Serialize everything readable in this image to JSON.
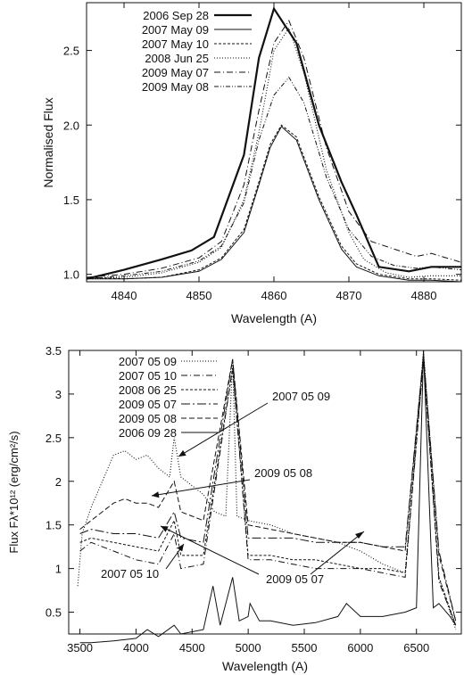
{
  "chart_data": [
    {
      "type": "line",
      "xlabel": "Wavelength (A)",
      "ylabel": "Normalised Flux",
      "xlim": [
        4835,
        4885
      ],
      "ylim": [
        0.95,
        2.82
      ],
      "xticks": [
        4840,
        4850,
        4860,
        4870,
        4880
      ],
      "yticks": [
        1.0,
        1.5,
        2.0,
        2.5
      ],
      "ytick_labels": [
        "1.0",
        "1.5",
        "2.0",
        "2.5"
      ],
      "grid": false,
      "legend_position": "top-left",
      "series": [
        {
          "name": "2006 Sep 28",
          "style": "thick-solid",
          "x": [
            4835,
            4840,
            4845,
            4849,
            4852,
            4856,
            4858,
            4860,
            4863,
            4866,
            4869,
            4871,
            4874,
            4878,
            4881,
            4885
          ],
          "y": [
            0.97,
            1.03,
            1.1,
            1.16,
            1.25,
            1.8,
            2.45,
            2.78,
            2.55,
            2.0,
            1.62,
            1.4,
            1.05,
            1.02,
            1.05,
            1.05
          ]
        },
        {
          "name": "2007 May 09",
          "style": "solid",
          "x": [
            4835,
            4840,
            4845,
            4850,
            4853,
            4856,
            4858,
            4859.5,
            4861,
            4863,
            4866,
            4869,
            4871,
            4874,
            4878,
            4881,
            4885
          ],
          "y": [
            0.97,
            0.97,
            0.98,
            1.02,
            1.1,
            1.28,
            1.6,
            1.85,
            1.99,
            1.9,
            1.5,
            1.17,
            1.05,
            0.99,
            0.96,
            0.96,
            0.95
          ]
        },
        {
          "name": "2007 May 10",
          "style": "dashed",
          "x": [
            4835,
            4840,
            4845,
            4850,
            4853,
            4856,
            4858,
            4859.5,
            4861,
            4863,
            4866,
            4869,
            4871,
            4874,
            4878,
            4881,
            4885
          ],
          "y": [
            0.98,
            0.97,
            0.98,
            1.03,
            1.11,
            1.3,
            1.62,
            1.87,
            2.0,
            1.92,
            1.52,
            1.19,
            1.07,
            1.0,
            0.97,
            0.97,
            0.96
          ]
        },
        {
          "name": "2008 Jun 25",
          "style": "dotted",
          "x": [
            4835,
            4840,
            4845,
            4850,
            4853,
            4856,
            4858,
            4860,
            4862,
            4864,
            4867,
            4870,
            4872,
            4875,
            4878,
            4881,
            4885
          ],
          "y": [
            0.97,
            0.98,
            1.01,
            1.08,
            1.18,
            1.5,
            1.95,
            2.5,
            2.65,
            2.35,
            1.7,
            1.28,
            1.1,
            1.01,
            0.98,
            0.99,
            0.99
          ]
        },
        {
          "name": "2009 May 07",
          "style": "dash-dot",
          "x": [
            4835,
            4840,
            4845,
            4850,
            4853,
            4856,
            4858,
            4860,
            4862,
            4864,
            4867,
            4870,
            4873,
            4876,
            4879,
            4881,
            4885
          ],
          "y": [
            0.98,
            1.0,
            1.04,
            1.11,
            1.22,
            1.6,
            2.1,
            2.55,
            2.7,
            2.45,
            1.85,
            1.42,
            1.22,
            1.17,
            1.12,
            1.14,
            1.08
          ]
        },
        {
          "name": "2009 May 08",
          "style": "dash-dot-dot",
          "x": [
            4835,
            4840,
            4845,
            4850,
            4853,
            4856,
            4858,
            4860,
            4862,
            4864,
            4867,
            4870,
            4873,
            4876,
            4879,
            4881,
            4885
          ],
          "y": [
            0.97,
            0.99,
            1.02,
            1.09,
            1.19,
            1.48,
            1.9,
            2.2,
            2.32,
            2.15,
            1.65,
            1.3,
            1.12,
            1.06,
            1.04,
            1.05,
            1.03
          ]
        }
      ]
    },
    {
      "type": "line",
      "xlabel": "Wavelength (A)",
      "ylabel": "Flux Fλ*10¹² (erg/cm²/s)",
      "xlim": [
        3400,
        6900
      ],
      "ylim": [
        0.25,
        3.5
      ],
      "xticks": [
        3500,
        4000,
        4500,
        5000,
        5500,
        6000,
        6500
      ],
      "yticks": [
        0.5,
        1,
        1.5,
        2,
        2.5,
        3,
        3.5
      ],
      "ytick_labels": [
        "0.5",
        "1",
        "1.5",
        "2",
        "2.5",
        "3",
        "3.5"
      ],
      "grid": false,
      "legend_position": "top-left",
      "series": [
        {
          "name": "2007 05 09",
          "style": "dotted",
          "x": [
            3480,
            3520,
            3600,
            3700,
            3800,
            3900,
            4000,
            4100,
            4200,
            4300,
            4340,
            4400,
            4500,
            4600,
            4700,
            4800,
            4861,
            4900,
            5000,
            5200,
            5400,
            5600,
            5800,
            6000,
            6200,
            6400,
            6563,
            6700,
            6850
          ],
          "y": [
            0.8,
            1.4,
            1.7,
            2.0,
            2.3,
            2.35,
            2.25,
            2.3,
            2.15,
            2.05,
            2.5,
            2.05,
            1.95,
            1.85,
            1.65,
            1.6,
            3.4,
            1.6,
            1.55,
            1.5,
            1.4,
            1.35,
            1.3,
            1.2,
            1.05,
            0.95,
            3.5,
            0.9,
            0.3
          ]
        },
        {
          "name": "2007 05 10",
          "style": "dash-dot",
          "x": [
            3500,
            3600,
            3800,
            4000,
            4200,
            4340,
            4400,
            4600,
            4861,
            5000,
            5200,
            5400,
            5600,
            5800,
            6000,
            6200,
            6400,
            6563,
            6700,
            6850
          ],
          "y": [
            1.2,
            1.3,
            1.2,
            1.1,
            1.05,
            1.4,
            1.0,
            1.05,
            3.3,
            1.1,
            1.1,
            1.05,
            1.0,
            1.0,
            1.0,
            0.95,
            0.9,
            3.4,
            0.85,
            0.35
          ]
        },
        {
          "name": "2008 06 25",
          "style": "dashed",
          "x": [
            3500,
            3600,
            3800,
            4000,
            4200,
            4340,
            4400,
            4600,
            4861,
            5000,
            5200,
            5400,
            5600,
            5800,
            6000,
            6200,
            6400,
            6563,
            6700,
            6850
          ],
          "y": [
            1.3,
            1.35,
            1.3,
            1.25,
            1.2,
            1.55,
            1.15,
            1.15,
            3.3,
            1.15,
            1.15,
            1.1,
            1.1,
            1.05,
            1.0,
            1.0,
            0.95,
            3.4,
            0.9,
            0.35
          ]
        },
        {
          "name": "2009 05 07",
          "style": "dash-dot-long",
          "x": [
            3500,
            3600,
            3800,
            4000,
            4200,
            4340,
            4400,
            4600,
            4861,
            5000,
            5200,
            5400,
            5600,
            5800,
            6000,
            6200,
            6400,
            6563,
            6700,
            6850
          ],
          "y": [
            1.4,
            1.45,
            1.4,
            1.4,
            1.35,
            1.65,
            1.35,
            1.3,
            3.4,
            1.35,
            1.35,
            1.35,
            1.3,
            1.3,
            1.3,
            1.25,
            1.25,
            3.45,
            1.2,
            0.4
          ]
        },
        {
          "name": "2009 05 08",
          "style": "long-dash",
          "x": [
            3500,
            3600,
            3700,
            3800,
            3900,
            4000,
            4100,
            4200,
            4340,
            4400,
            4500,
            4600,
            4861,
            5000,
            5200,
            5400,
            5600,
            5800,
            6000,
            6200,
            6400,
            6563,
            6700,
            6850
          ],
          "y": [
            1.45,
            1.55,
            1.65,
            1.75,
            1.8,
            1.75,
            1.75,
            1.7,
            2.0,
            1.65,
            1.6,
            1.55,
            3.4,
            1.5,
            1.45,
            1.4,
            1.35,
            1.3,
            1.3,
            1.25,
            1.2,
            3.45,
            1.15,
            0.4
          ]
        },
        {
          "name": "2006 09 28",
          "style": "solid",
          "x": [
            3500,
            3600,
            3800,
            4000,
            4101,
            4200,
            4340,
            4400,
            4600,
            4686,
            4750,
            4861,
            4920,
            5000,
            5016,
            5100,
            5200,
            5400,
            5600,
            5800,
            5876,
            6000,
            6200,
            6400,
            6500,
            6563,
            6650,
            6700,
            6800,
            6850
          ],
          "y": [
            0.15,
            0.15,
            0.17,
            0.2,
            0.3,
            0.22,
            0.35,
            0.25,
            0.3,
            0.8,
            0.35,
            0.9,
            0.4,
            0.45,
            0.6,
            0.4,
            0.4,
            0.35,
            0.38,
            0.45,
            0.6,
            0.45,
            0.45,
            0.5,
            0.55,
            3.5,
            0.55,
            0.6,
            0.45,
            0.35
          ]
        }
      ],
      "annotations": [
        "2007 05 09",
        "2009 05 08",
        "2007 05 10",
        "2009 05 07"
      ]
    }
  ]
}
